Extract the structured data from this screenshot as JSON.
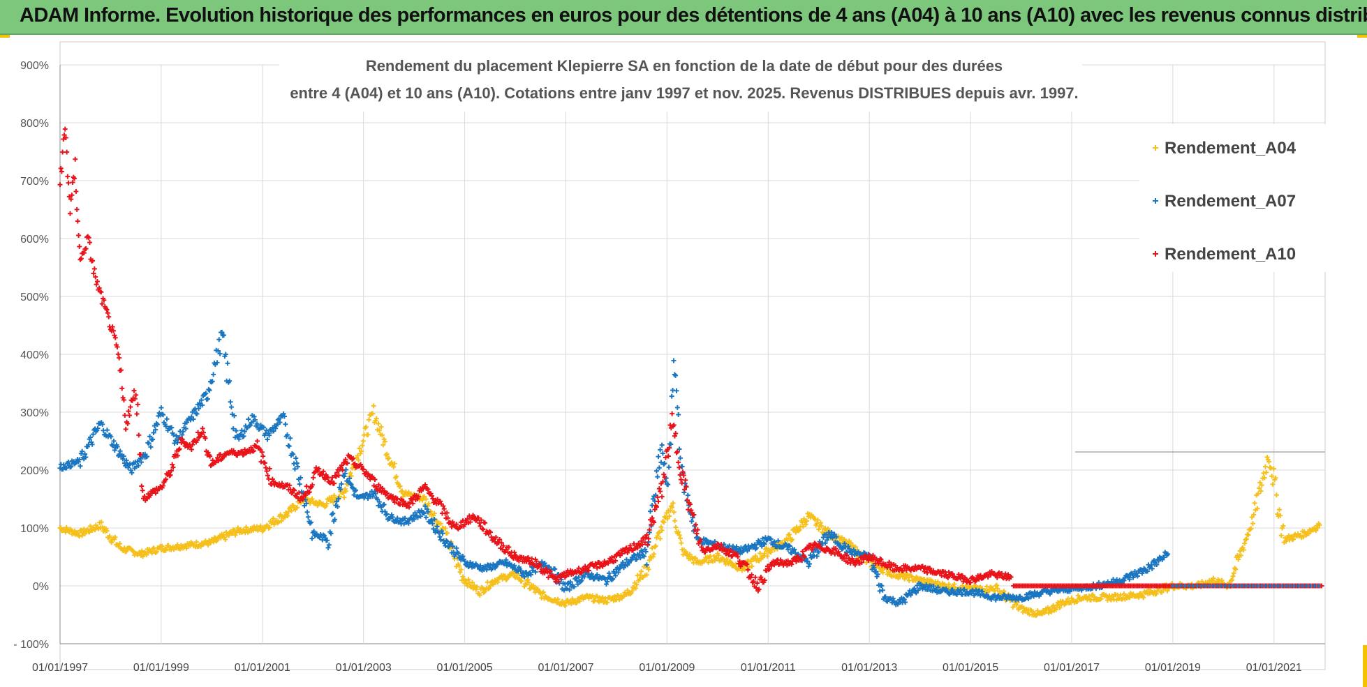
{
  "banner": {
    "title": "ADAM Informe. Evolution historique des performances en euros pour des détentions de 4 ans (A04) à 10 ans (A10) avec les revenus connus distribués"
  },
  "colors": {
    "banner_bg": "#7dc77d",
    "A04": "#f5c01c",
    "A07": "#1a76c0",
    "A10": "#e8141a",
    "grid": "#d9d9d9"
  },
  "chart_data": {
    "type": "scatter",
    "title_lines": [
      "Rendement du placement Klepierre SA en fonction de la date de début pour des durées",
      "entre 4 (A04) et 10 ans (A10).  Cotations entre janv 1997 et nov. 2025. Revenus DISTRIBUES depuis avr. 1997."
    ],
    "xlabel": "",
    "ylabel": "",
    "x_ticks": [
      "01/01/1997",
      "01/01/1999",
      "01/01/2001",
      "01/01/2003",
      "01/01/2005",
      "01/01/2007",
      "01/01/2009",
      "01/01/2011",
      "01/01/2013",
      "01/01/2015",
      "01/01/2017",
      "01/01/2019",
      "01/01/2021"
    ],
    "x_range": [
      1997.0,
      2022.0
    ],
    "y_ticks": [
      "- 100%",
      "0%",
      "100%",
      "200%",
      "300%",
      "400%",
      "500%",
      "600%",
      "700%",
      "800%",
      "900%"
    ],
    "y_range": [
      -100,
      900
    ],
    "legend_position": "top-right",
    "series": [
      {
        "name": "Rendement_A04",
        "color": "#f5c01c",
        "x": [
          1997.0,
          1997.4,
          1997.8,
          1998.2,
          1998.6,
          1999.0,
          1999.5,
          2000.0,
          2000.5,
          2001.0,
          2001.5,
          2001.8,
          2002.2,
          2002.6,
          2002.9,
          2003.2,
          2003.5,
          2003.8,
          2004.2,
          2004.6,
          2005.0,
          2005.3,
          2005.6,
          2006.0,
          2006.5,
          2007.0,
          2007.4,
          2007.8,
          2008.2,
          2008.6,
          2008.9,
          2009.1,
          2009.3,
          2009.6,
          2010.0,
          2010.5,
          2011.0,
          2011.4,
          2011.8,
          2012.2,
          2012.6,
          2013.0,
          2013.5,
          2014.0,
          2014.5,
          2015.0,
          2015.5,
          2016.0,
          2016.4,
          2016.8,
          2017.2,
          2017.8,
          2018.4,
          2019.0,
          2019.5,
          2019.8,
          2020.1,
          2020.4,
          2020.6,
          2020.9,
          2021.2,
          2021.6,
          2021.9
        ],
        "y": [
          100,
          90,
          105,
          65,
          55,
          65,
          70,
          75,
          95,
          100,
          125,
          150,
          140,
          160,
          230,
          300,
          225,
          160,
          150,
          90,
          10,
          -10,
          10,
          20,
          -15,
          -30,
          -20,
          -25,
          -15,
          30,
          100,
          140,
          60,
          40,
          50,
          30,
          60,
          80,
          120,
          90,
          70,
          40,
          20,
          10,
          0,
          -5,
          -5,
          -40,
          -50,
          -30,
          -20,
          -20,
          -15,
          0,
          0,
          10,
          0,
          70,
          120,
          230,
          80,
          90,
          105
        ]
      },
      {
        "name": "Rendement_A07",
        "color": "#1a76c0",
        "x": [
          1997.0,
          1997.4,
          1997.8,
          1998.1,
          1998.4,
          1998.7,
          1999.0,
          1999.3,
          1999.6,
          1999.9,
          2000.2,
          2000.5,
          2000.8,
          2001.1,
          2001.4,
          2001.7,
          2002.0,
          2002.3,
          2002.6,
          2002.9,
          2003.2,
          2003.5,
          2003.8,
          2004.2,
          2004.6,
          2005.0,
          2005.4,
          2005.8,
          2006.2,
          2006.6,
          2007.0,
          2007.4,
          2007.8,
          2008.2,
          2008.6,
          2008.9,
          2009.0,
          2009.15,
          2009.3,
          2009.6,
          2010.0,
          2010.5,
          2011.0,
          2011.5,
          2011.8,
          2012.2,
          2012.6,
          2013.0,
          2013.3,
          2013.6,
          2014.0,
          2014.5,
          2015.0,
          2015.5,
          2016.0,
          2016.5,
          2017.0,
          2017.5,
          2018.0,
          2018.5,
          2018.9
        ],
        "y": [
          205,
          215,
          280,
          240,
          200,
          230,
          300,
          250,
          290,
          330,
          430,
          250,
          290,
          260,
          290,
          200,
          90,
          80,
          200,
          150,
          160,
          120,
          110,
          130,
          80,
          40,
          30,
          40,
          20,
          40,
          -5,
          20,
          10,
          40,
          60,
          240,
          160,
          385,
          190,
          80,
          70,
          60,
          80,
          60,
          40,
          90,
          60,
          50,
          -20,
          -30,
          0,
          -10,
          -10,
          -20,
          -20,
          -10,
          -5,
          0,
          10,
          30,
          55
        ]
      },
      {
        "name": "Rendement_A10",
        "color": "#e8141a",
        "x": [
          1997.0,
          1997.1,
          1997.2,
          1997.3,
          1997.4,
          1997.55,
          1997.7,
          1997.85,
          1998.0,
          1998.15,
          1998.3,
          1998.5,
          1998.65,
          1998.8,
          1999.0,
          1999.2,
          1999.4,
          1999.6,
          1999.8,
          2000.0,
          2000.3,
          2000.6,
          2000.9,
          2001.2,
          2001.5,
          2001.8,
          2002.1,
          2002.4,
          2002.7,
          2003.0,
          2003.3,
          2003.6,
          2003.9,
          2004.2,
          2004.5,
          2004.8,
          2005.2,
          2005.6,
          2006.0,
          2006.4,
          2006.8,
          2007.0,
          2007.4,
          2007.8,
          2008.2,
          2008.6,
          2008.9,
          2009.1,
          2009.4,
          2009.7,
          2010.0,
          2010.4,
          2010.8,
          2011.1,
          2011.5,
          2011.9,
          2012.3,
          2012.7,
          2013.0,
          2013.5,
          2014.0,
          2014.5,
          2015.0,
          2015.4,
          2015.8
        ],
        "y": [
          700,
          790,
          650,
          720,
          560,
          600,
          530,
          490,
          450,
          400,
          280,
          340,
          150,
          160,
          170,
          200,
          250,
          240,
          270,
          210,
          230,
          230,
          240,
          180,
          170,
          150,
          200,
          180,
          220,
          200,
          170,
          150,
          140,
          170,
          140,
          100,
          120,
          80,
          50,
          40,
          10,
          20,
          30,
          40,
          60,
          80,
          170,
          280,
          150,
          60,
          70,
          50,
          0,
          40,
          40,
          70,
          60,
          40,
          50,
          30,
          30,
          20,
          10,
          20,
          15
        ]
      }
    ]
  }
}
